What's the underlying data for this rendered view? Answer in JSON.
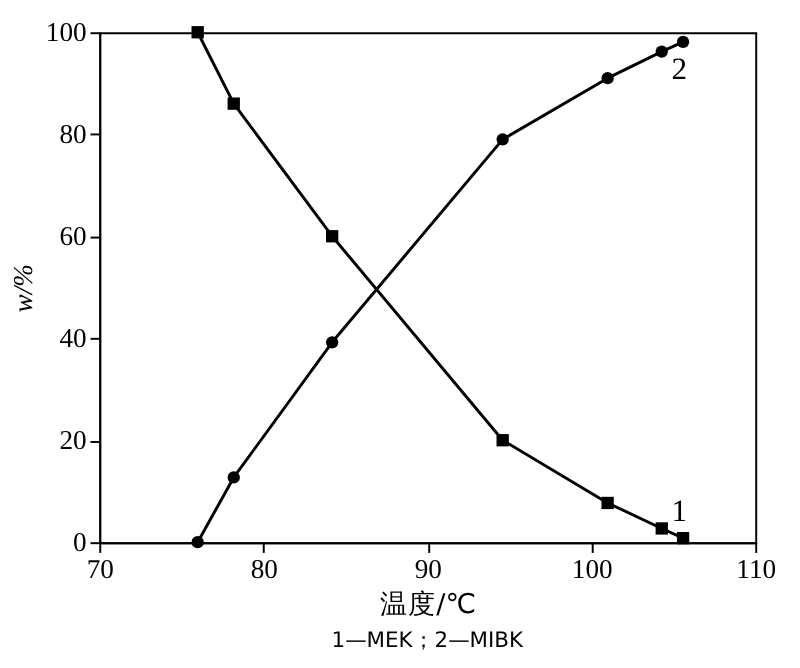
{
  "chart_data": {
    "type": "line",
    "xlabel": "温度/℃",
    "ylabel": "w/%",
    "series": [
      {
        "name": "1",
        "values": [
          100,
          86,
          60,
          20,
          7.7,
          2.7,
          0.8
        ],
        "x": [
          76,
          78.2,
          84.2,
          94.6,
          101,
          104.3,
          105.6
        ],
        "color": "#000000",
        "marker": "square"
      },
      {
        "name": "2",
        "values": [
          0,
          12.7,
          39.2,
          79,
          91,
          96.2,
          98.1
        ],
        "x": [
          76,
          78.2,
          84.2,
          94.6,
          101,
          104.3,
          105.6
        ],
        "color": "#000000",
        "marker": "circle"
      }
    ],
    "annotations": [
      "1—MEK；2—MIBK"
    ],
    "xlim": [
      70,
      110
    ],
    "xticks": [
      70,
      80,
      90,
      100,
      110
    ],
    "ylim": [
      0,
      100
    ],
    "yticks": [
      0,
      20,
      40,
      60,
      80,
      100
    ],
    "grid": false,
    "line_style": "solid"
  }
}
